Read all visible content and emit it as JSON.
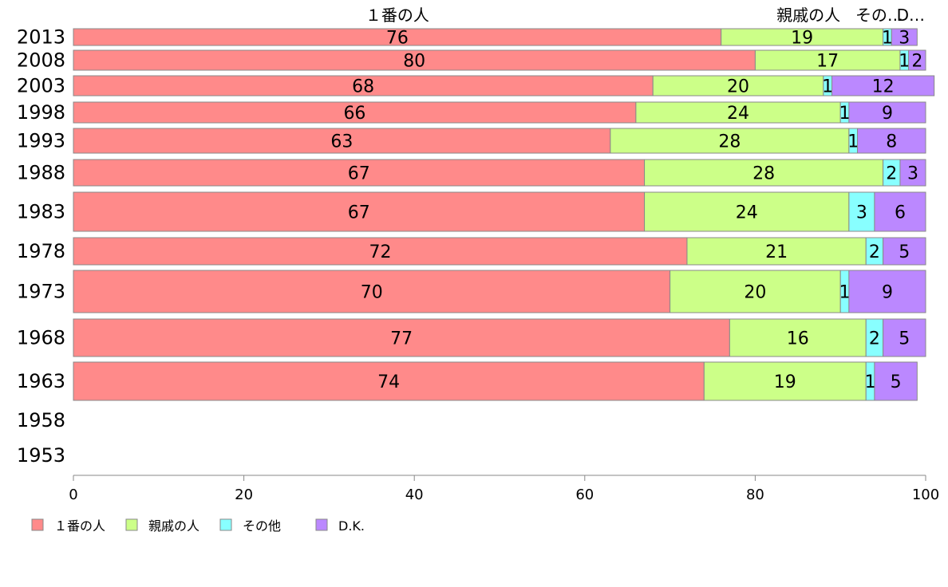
{
  "chart_data": {
    "type": "bar",
    "orientation": "horizontal",
    "stacked": true,
    "categories": [
      "2013",
      "2008",
      "2003",
      "1998",
      "1993",
      "1988",
      "1983",
      "1978",
      "1973",
      "1968",
      "1963",
      "1958",
      "1953"
    ],
    "series": [
      {
        "name": "１番の人",
        "color": "#ff8a8a",
        "values": [
          76,
          80,
          68,
          66,
          63,
          67,
          67,
          72,
          70,
          77,
          74,
          null,
          null
        ]
      },
      {
        "name": "親戚の人",
        "color": "#ccff88",
        "values": [
          19,
          17,
          20,
          24,
          28,
          28,
          24,
          21,
          20,
          16,
          19,
          null,
          null
        ]
      },
      {
        "name": "その他",
        "color": "#88ffff",
        "values": [
          1,
          1,
          1,
          1,
          1,
          2,
          3,
          2,
          1,
          2,
          1,
          null,
          null
        ]
      },
      {
        "name": "D.K.",
        "color": "#bb88ff",
        "values": [
          3,
          2,
          12,
          9,
          8,
          3,
          6,
          5,
          9,
          5,
          5,
          null,
          null
        ]
      }
    ],
    "header_labels": [
      "１番の人",
      "親戚の人",
      "その…",
      "D…"
    ],
    "xlim": [
      0,
      100
    ],
    "xticks": [
      "0",
      "20",
      "40",
      "60",
      "80",
      "100"
    ],
    "legend_position": "bottom-left",
    "grid": false
  }
}
